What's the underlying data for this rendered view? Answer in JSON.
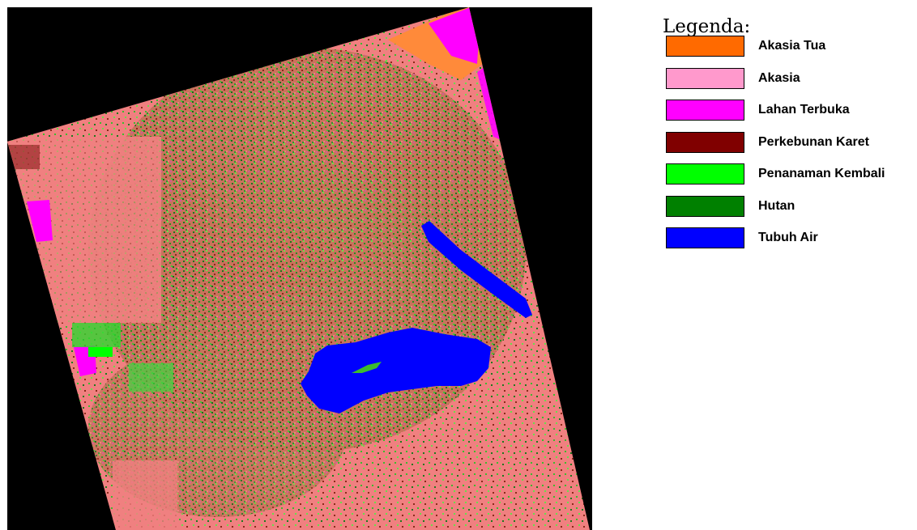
{
  "legend": {
    "title": "Legenda:",
    "items": [
      {
        "key": "akasia-tua",
        "label": "Akasia Tua",
        "color": "#ff6a00"
      },
      {
        "key": "akasia",
        "label": "Akasia",
        "color": "#ff99cc"
      },
      {
        "key": "lahan-terbuka",
        "label": "Lahan Terbuka",
        "color": "#ff00ff"
      },
      {
        "key": "perkebunan-karet",
        "label": "Perkebunan Karet",
        "color": "#800000"
      },
      {
        "key": "penanaman-kembali",
        "label": "Penanaman Kembali",
        "color": "#00ff00"
      },
      {
        "key": "hutan",
        "label": "Hutan",
        "color": "#008000"
      },
      {
        "key": "tubuh-air",
        "label": "Tubuh Air",
        "color": "#0000ff"
      }
    ]
  },
  "map": {
    "background_color": "#000000",
    "base_color": "#f08080"
  }
}
